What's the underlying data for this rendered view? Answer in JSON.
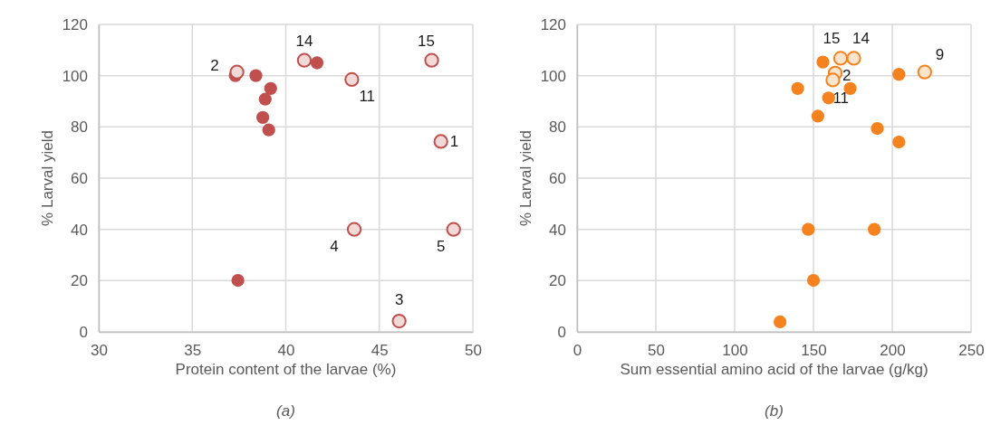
{
  "chart_data": [
    {
      "type": "scatter",
      "xlabel": "Protein content of the larvae (%)",
      "ylabel": "% Larval yield",
      "xlim": [
        30,
        50
      ],
      "ylim": [
        0,
        120
      ],
      "xticks": [
        30,
        35,
        40,
        45,
        50
      ],
      "yticks": [
        0,
        20,
        40,
        60,
        80,
        100,
        120
      ],
      "grid": true,
      "marker": "circle",
      "series": [
        {
          "color": "#c0504d",
          "x": [
            37.3,
            38.4,
            39.19,
            38.9,
            38.77,
            39.09,
            41.67,
            37.44
          ],
          "values": [
            100,
            100,
            95,
            90.8,
            83.7,
            78.8,
            105,
            20.1
          ]
        },
        {
          "color": "#c0504d",
          "x": [
            37.39,
            40.99,
            47.8,
            43.53,
            48.29,
            43.66,
            48.97,
            46.06
          ],
          "values": [
            101.4,
            106,
            106,
            98.5,
            74.3,
            40,
            40,
            4.2
          ]
        }
      ],
      "annotations": [
        {
          "text": "2",
          "x": 37.39,
          "y": 101.4
        },
        {
          "text": "14",
          "x": 40.99,
          "y": 106
        },
        {
          "text": "15",
          "x": 47.8,
          "y": 106
        },
        {
          "text": "11",
          "x": 43.53,
          "y": 98.5
        },
        {
          "text": "1",
          "x": 48.29,
          "y": 74.3
        },
        {
          "text": "4",
          "x": 43.66,
          "y": 40
        },
        {
          "text": "5",
          "x": 48.97,
          "y": 40
        },
        {
          "text": "3",
          "x": 46.06,
          "y": 4.2
        },
        "(a)"
      ]
    },
    {
      "type": "scatter",
      "xlabel": "Sum essential amino acid of the larvae (g/kg)",
      "ylabel": "% Larval yield",
      "xlim": [
        0,
        250
      ],
      "ylim": [
        0,
        120
      ],
      "xticks": [
        0,
        50,
        100,
        150,
        200,
        250
      ],
      "yticks": [
        0,
        20,
        40,
        60,
        80,
        100,
        120
      ],
      "grid": true,
      "marker": "circle",
      "series": [
        {
          "color": "#f4831f",
          "x": [
            156,
            140,
            173.3,
            159.6,
            152.8,
            204.2,
            190.5,
            204.2,
            146.7,
            188.6,
            150,
            128.8
          ],
          "values": [
            105.3,
            95,
            95,
            91.3,
            84.2,
            100.5,
            79.4,
            74.1,
            40,
            40,
            20.1,
            3.9
          ]
        },
        {
          "color": "#f4831f",
          "x": [
            167.2,
            175.6,
            163.8,
            162.3,
            220.6
          ],
          "values": [
            106.8,
            106.8,
            101,
            98.3,
            101.4
          ]
        }
      ],
      "annotations": [
        {
          "text": "15",
          "x": 167.2,
          "y": 106.8
        },
        {
          "text": "14",
          "x": 175.6,
          "y": 106.8
        },
        {
          "text": "2",
          "x": 163.8,
          "y": 101
        },
        {
          "text": "11",
          "x": 162.3,
          "y": 98.3
        },
        {
          "text": "9",
          "x": 220.6,
          "y": 101.4
        },
        "(b)"
      ]
    }
  ]
}
